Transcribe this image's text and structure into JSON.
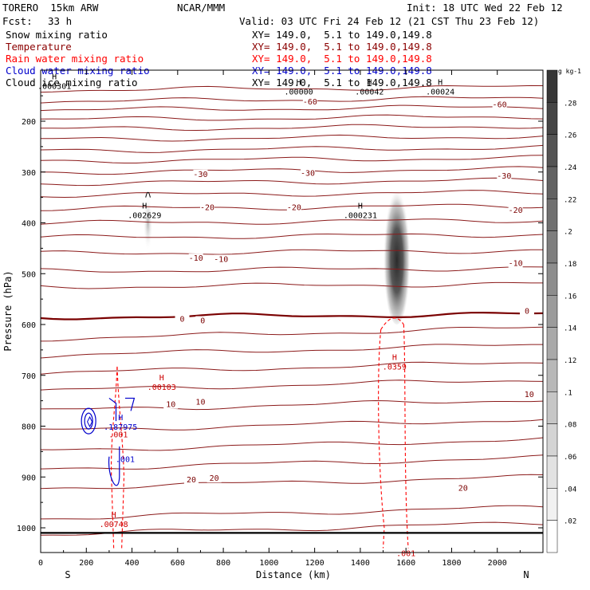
{
  "header": {
    "model": "TORERO  15km ARW",
    "org": "NCAR/MMM",
    "init": "Init: 18 UTC Wed 22 Feb 12",
    "fcst_label": "Fcst:",
    "fcst_value": "33 h",
    "valid": "Valid: 03 UTC Fri 24 Feb 12 (21 CST Thu 23 Feb 12)"
  },
  "legend": [
    {
      "name": "Snow mixing ratio",
      "color": "#000000",
      "xy": "XY= 149.0,  5.1 to 149.0,149.8"
    },
    {
      "name": "Temperature",
      "color": "#8b0000",
      "xy": "XY= 149.0,  5.1 to 149.0,149.8"
    },
    {
      "name": "Rain water mixing ratio",
      "color": "#ff0000",
      "xy": "XY= 149.0,  5.1 to 149.0,149.8"
    },
    {
      "name": "Cloud water mixing ratio",
      "color": "#0000cc",
      "xy": "XY= 149.0,  5.1 to 149.0,149.8"
    },
    {
      "name": "Cloud ice mixing ratio",
      "color": "#000000",
      "xy": "XY= 149.0,  5.1 to 149.0,149.8"
    }
  ],
  "chart_data": {
    "type": "heatmap",
    "xlabel": "Distance (km)",
    "ylabel": "Pressure (hPa)",
    "xlim": [
      0,
      2200
    ],
    "ylim": [
      1050,
      100
    ],
    "x_ticks": [
      0,
      200,
      400,
      600,
      800,
      1000,
      1200,
      1400,
      1600,
      1800,
      2000
    ],
    "y_ticks": [
      200,
      300,
      400,
      500,
      600,
      700,
      800,
      900,
      1000
    ],
    "x_end_labels": {
      "left": "S",
      "right": "N"
    },
    "colorbar": {
      "unit": "g kg-1",
      "ticks": [
        ".02",
        ".04",
        ".06",
        ".08",
        ".1",
        ".12",
        ".14",
        ".16",
        ".18",
        ".2",
        ".22",
        ".24",
        ".26",
        ".28"
      ]
    },
    "snow_plumes": [
      {
        "x": 1560,
        "p_top": 320,
        "p_bottom": 600,
        "max": 0.28
      },
      {
        "x": 470,
        "p_top": 345,
        "p_bottom": 455,
        "max": 0.06
      }
    ],
    "temperature_contour_labels": [
      {
        "text": "-60",
        "x": 1180,
        "p": 162
      },
      {
        "text": "-60",
        "x": 2010,
        "p": 168
      },
      {
        "text": "-30",
        "x": 700,
        "p": 305
      },
      {
        "text": "-30",
        "x": 1170,
        "p": 303
      },
      {
        "text": "-30",
        "x": 2030,
        "p": 308
      },
      {
        "text": "-20",
        "x": 730,
        "p": 370
      },
      {
        "text": "-20",
        "x": 1110,
        "p": 370
      },
      {
        "text": "-20",
        "x": 2080,
        "p": 376
      },
      {
        "text": "-10",
        "x": 680,
        "p": 470
      },
      {
        "text": "-10",
        "x": 790,
        "p": 472
      },
      {
        "text": "-10",
        "x": 2080,
        "p": 480
      },
      {
        "text": "0",
        "x": 620,
        "p": 590
      },
      {
        "text": "0",
        "x": 710,
        "p": 593
      },
      {
        "text": "0",
        "x": 2130,
        "p": 574
      },
      {
        "text": "10",
        "x": 570,
        "p": 758
      },
      {
        "text": "10",
        "x": 700,
        "p": 753
      },
      {
        "text": "10",
        "x": 2140,
        "p": 738
      },
      {
        "text": "20",
        "x": 660,
        "p": 906
      },
      {
        "text": "20",
        "x": 760,
        "p": 903
      },
      {
        "text": "20",
        "x": 1850,
        "p": 922
      }
    ],
    "mixing_ratio_labels": [
      {
        "marker": "H",
        "value": ".002629",
        "x": 455,
        "p": 375,
        "color": "#000000"
      },
      {
        "marker": "H",
        "value": ".000231",
        "x": 1400,
        "p": 375,
        "color": "#000000"
      },
      {
        "marker": "H",
        "value": ".0359",
        "x": 1550,
        "p": 673,
        "color": "#cc0000"
      },
      {
        "marker": "H",
        "value": ".00103",
        "x": 530,
        "p": 713,
        "color": "#cc0000"
      },
      {
        "marker": "H",
        "value": ".00748",
        "x": 320,
        "p": 983,
        "color": "#cc0000"
      },
      {
        "marker": "",
        "value": ".001",
        "x": 1600,
        "p": 1040,
        "color": "#cc0000"
      },
      {
        "marker": "H",
        "value": ".187975",
        "x": 350,
        "p": 791,
        "color": "#0000cc"
      },
      {
        "marker": "",
        "value": ".001",
        "x": 340,
        "p": 806,
        "color": "#cc0000"
      },
      {
        "marker": "",
        "value": ".001",
        "x": 370,
        "p": 855,
        "color": "#0000cc"
      }
    ],
    "ice_labels": [
      {
        "marker": "H",
        "value": ".000301",
        "x": 60,
        "p": 121
      },
      {
        "marker": "H",
        "value": ".00000",
        "x": 1130,
        "p": 132
      },
      {
        "marker": "H",
        "value": ".00042",
        "x": 1440,
        "p": 132
      },
      {
        "marker": "H",
        "value": ".00024",
        "x": 1750,
        "p": 132
      }
    ]
  }
}
